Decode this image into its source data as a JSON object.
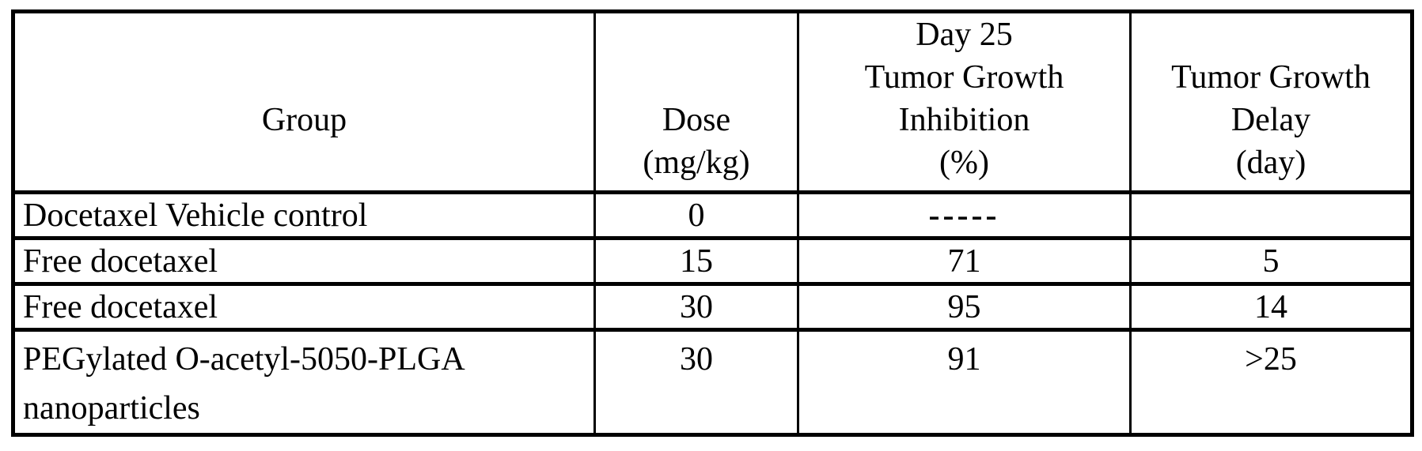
{
  "table": {
    "headers": {
      "group": [
        "Group"
      ],
      "dose": [
        "Dose",
        "(mg/kg)"
      ],
      "inhibition": [
        "Day 25",
        "Tumor Growth",
        "Inhibition",
        "(%)"
      ],
      "delay": [
        "Tumor Growth",
        "Delay",
        "(day)"
      ]
    },
    "rows": [
      {
        "group": "Docetaxel Vehicle control",
        "dose": "0",
        "inhibition": "-----",
        "delay": ""
      },
      {
        "group": "Free docetaxel",
        "dose": "15",
        "inhibition": "71",
        "delay": "5"
      },
      {
        "group": "Free docetaxel",
        "dose": "30",
        "inhibition": "95",
        "delay": "14"
      },
      {
        "group": "PEGylated O-acetyl-5050-PLGA nanoparticles",
        "dose": "30",
        "inhibition": "91",
        "delay": ">25"
      }
    ],
    "colors": {
      "border": "#000000",
      "background": "#ffffff",
      "text": "#000000"
    }
  }
}
